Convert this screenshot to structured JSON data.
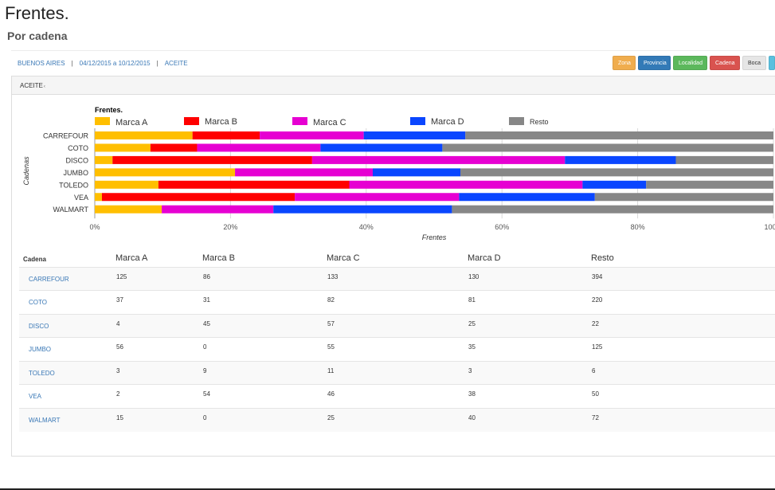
{
  "page": {
    "title": "Frentes.",
    "subtitle": "Por cadena"
  },
  "breadcrumb": {
    "zone": "BUENOS AIRES",
    "dates": "04/12/2015 a 10/12/2015",
    "category": "ACEITE",
    "separator": "|"
  },
  "filters": {
    "zona": "Zona",
    "provincia": "Provincia",
    "localidad": "Localidad",
    "cadena": "Cadena",
    "boca": "Boca"
  },
  "colors": {
    "marca_a": "#ffbf00",
    "marca_b": "#ff0000",
    "marca_c": "#e600d2",
    "marca_d": "#0a46ff",
    "resto": "#878787"
  },
  "panel": {
    "heading": "ACEITE",
    "heading_caret": "‹"
  },
  "chart_data": {
    "type": "bar",
    "orientation": "horizontal",
    "stacked": "percent",
    "title": "Frentes.",
    "xlabel": "Frentes",
    "ylabel": "Cadenas",
    "xlim": [
      0,
      100
    ],
    "xticks": [
      "0%",
      "20%",
      "40%",
      "60%",
      "80%",
      "100%"
    ],
    "legend_position": "top",
    "categories": [
      "CARREFOUR",
      "COTO",
      "DISCO",
      "JUMBO",
      "TOLEDO",
      "VEA",
      "WALMART"
    ],
    "series": [
      {
        "name": "Marca A",
        "values": [
          125,
          37,
          4,
          56,
          3,
          2,
          15
        ]
      },
      {
        "name": "Marca B",
        "values": [
          86,
          31,
          45,
          0,
          9,
          54,
          0
        ]
      },
      {
        "name": "Marca C",
        "values": [
          133,
          82,
          57,
          55,
          11,
          46,
          25
        ]
      },
      {
        "name": "Marca D",
        "values": [
          130,
          81,
          25,
          35,
          3,
          38,
          40
        ]
      },
      {
        "name": "Resto",
        "values": [
          394,
          220,
          22,
          125,
          6,
          50,
          72
        ]
      }
    ]
  },
  "table": {
    "headers": [
      "Cadena",
      "Marca A",
      "Marca B",
      "Marca C",
      "Marca D",
      "Resto"
    ],
    "rows": [
      [
        "CARREFOUR",
        "125",
        "86",
        "133",
        "130",
        "394"
      ],
      [
        "COTO",
        "37",
        "31",
        "82",
        "81",
        "220"
      ],
      [
        "DISCO",
        "4",
        "45",
        "57",
        "25",
        "22"
      ],
      [
        "JUMBO",
        "56",
        "0",
        "55",
        "35",
        "125"
      ],
      [
        "TOLEDO",
        "3",
        "9",
        "11",
        "3",
        "6"
      ],
      [
        "VEA",
        "2",
        "54",
        "46",
        "38",
        "50"
      ],
      [
        "WALMART",
        "15",
        "0",
        "25",
        "40",
        "72"
      ]
    ]
  }
}
